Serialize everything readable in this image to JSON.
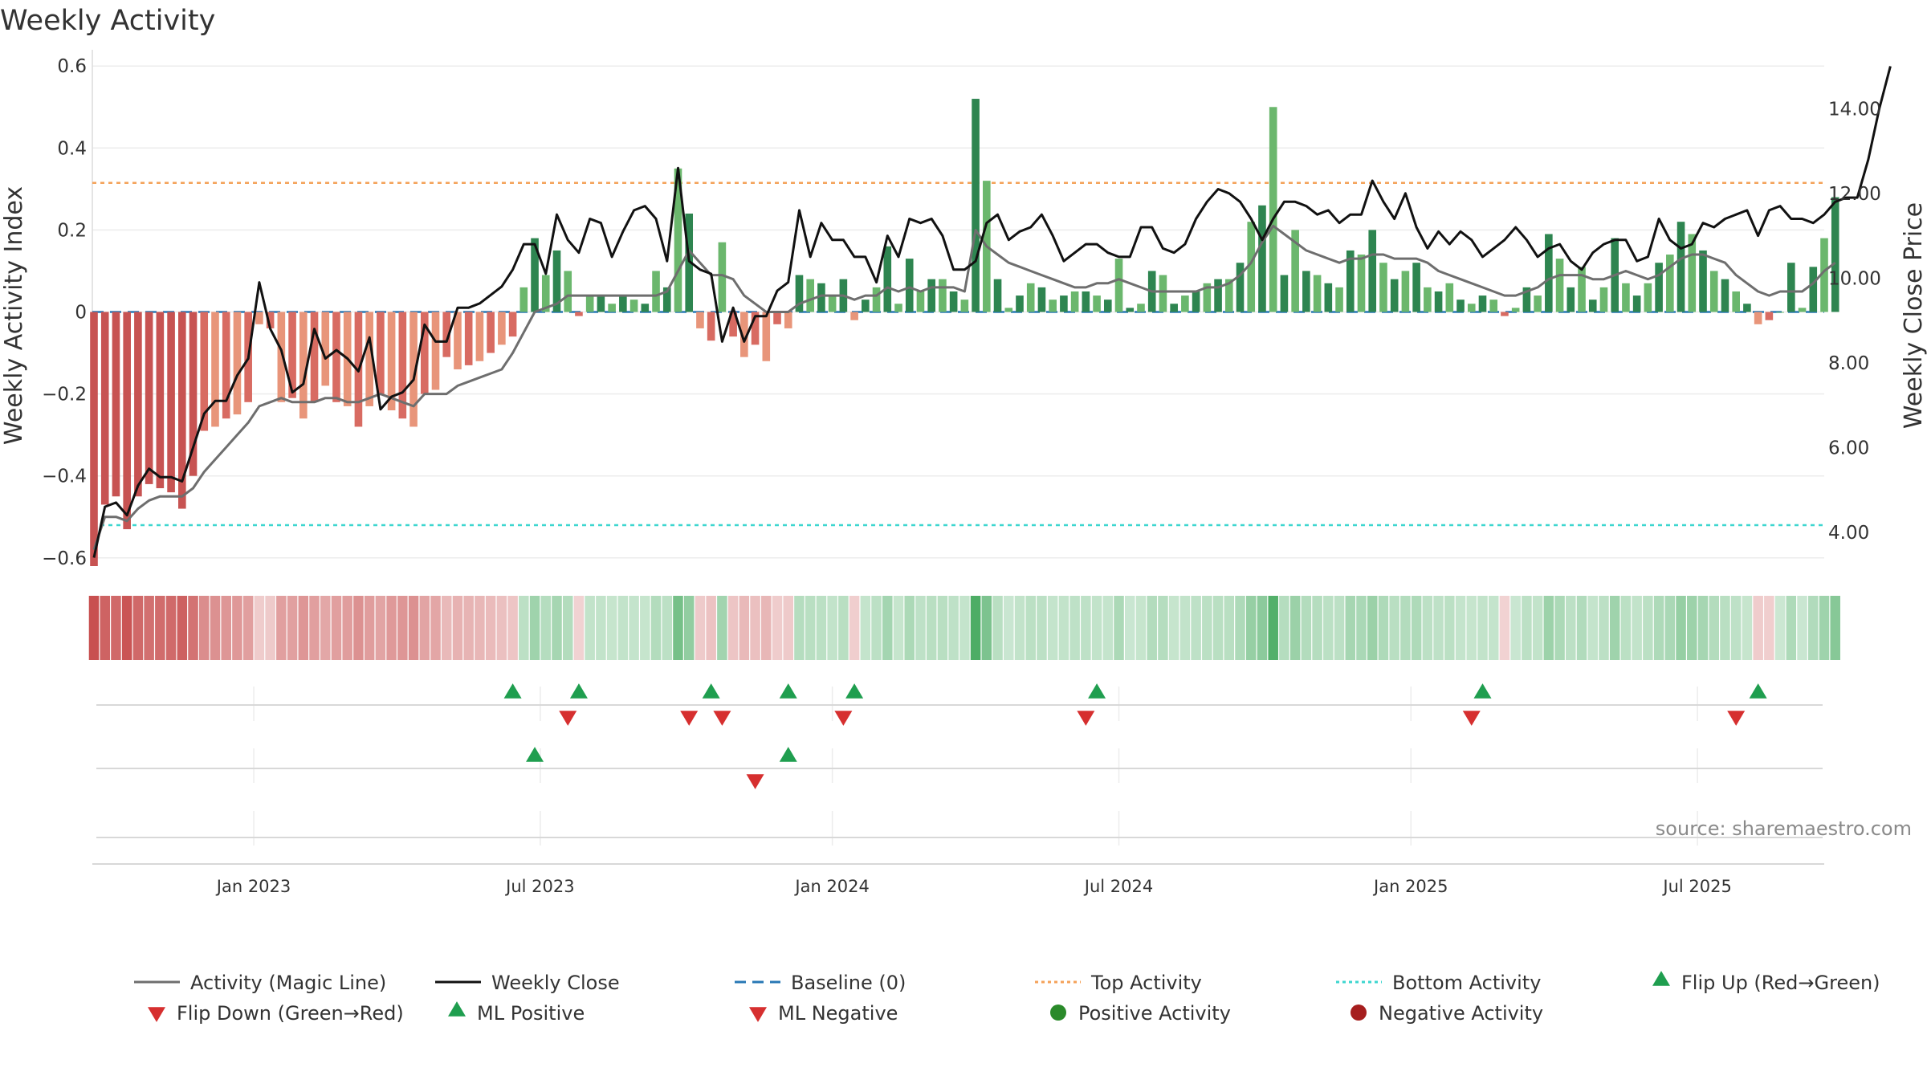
{
  "chart_data": {
    "type": "bar",
    "title": "Weekly Activity",
    "ylabel": "Weekly Activity Index",
    "y2label": "Weekly Close Price",
    "ylim": [
      -0.62,
      0.62
    ],
    "y2lim": [
      3.2,
      15.2
    ],
    "y_ticks": [
      -0.6,
      -0.4,
      -0.2,
      0,
      0.2,
      0.4,
      0.6
    ],
    "y_tick_labels": [
      "−0.6",
      "−0.4",
      "−0.2",
      "0",
      "0.2",
      "0.4",
      "0.6"
    ],
    "y2_ticks": [
      4,
      6,
      8,
      10,
      12,
      14
    ],
    "y2_tick_labels": [
      "4.00",
      "6.00",
      "8.00",
      "10.00",
      "12.00",
      "14.00"
    ],
    "x_range_weeks": [
      0,
      157
    ],
    "x_ticks_week": [
      14.5,
      40.5,
      67,
      93,
      119.5,
      145.5
    ],
    "x_tick_labels": [
      "Jan 2023",
      "Jul 2023",
      "Jan 2024",
      "Jul 2024",
      "Jan 2025",
      "Jul 2025"
    ],
    "baseline": 0,
    "top_activity": 0.315,
    "bottom_activity": -0.52,
    "source": "source: sharemaestro.com",
    "activity_index": [
      -0.62,
      -0.47,
      -0.45,
      -0.53,
      -0.45,
      -0.42,
      -0.43,
      -0.44,
      -0.48,
      -0.4,
      -0.29,
      -0.28,
      -0.26,
      -0.25,
      -0.22,
      -0.03,
      -0.04,
      -0.22,
      -0.21,
      -0.26,
      -0.22,
      -0.18,
      -0.22,
      -0.23,
      -0.28,
      -0.23,
      -0.2,
      -0.24,
      -0.26,
      -0.28,
      -0.2,
      -0.19,
      -0.11,
      -0.14,
      -0.13,
      -0.12,
      -0.1,
      -0.08,
      -0.06,
      0.06,
      0.18,
      0.09,
      0.15,
      0.1,
      -0.01,
      0.04,
      0.04,
      0.02,
      0.04,
      0.03,
      0.02,
      0.1,
      0.06,
      0.35,
      0.24,
      -0.04,
      -0.07,
      0.17,
      -0.06,
      -0.11,
      -0.08,
      -0.12,
      -0.03,
      -0.04,
      0.09,
      0.08,
      0.07,
      0.04,
      0.08,
      -0.02,
      0.03,
      0.06,
      0.16,
      0.02,
      0.13,
      0.05,
      0.08,
      0.08,
      0.05,
      0.03,
      0.52,
      0.32,
      0.08,
      0.01,
      0.04,
      0.07,
      0.06,
      0.03,
      0.04,
      0.05,
      0.05,
      0.04,
      0.03,
      0.13,
      0.01,
      0.02,
      0.1,
      0.09,
      0.02,
      0.04,
      0.05,
      0.07,
      0.08,
      0.08,
      0.12,
      0.22,
      0.26,
      0.5,
      0.09,
      0.2,
      0.1,
      0.09,
      0.07,
      0.06,
      0.15,
      0.14,
      0.2,
      0.12,
      0.08,
      0.1,
      0.12,
      0.06,
      0.05,
      0.07,
      0.03,
      0.02,
      0.04,
      0.03,
      -0.01,
      0.01,
      0.06,
      0.04,
      0.19,
      0.13,
      0.06,
      0.11,
      0.03,
      0.06,
      0.18,
      0.07,
      0.04,
      0.07,
      0.12,
      0.14,
      0.22,
      0.19,
      0.15,
      0.1,
      0.08,
      0.05,
      0.02,
      -0.03,
      -0.02,
      0,
      0.12,
      0.01,
      0.11,
      0.18,
      0.28
    ],
    "magic_line": [
      -0.58,
      -0.5,
      -0.5,
      -0.51,
      -0.48,
      -0.46,
      -0.45,
      -0.45,
      -0.45,
      -0.43,
      -0.39,
      -0.36,
      -0.33,
      -0.3,
      -0.27,
      -0.23,
      -0.22,
      -0.21,
      -0.22,
      -0.22,
      -0.22,
      -0.21,
      -0.21,
      -0.22,
      -0.22,
      -0.21,
      -0.2,
      -0.21,
      -0.22,
      -0.23,
      -0.2,
      -0.2,
      -0.2,
      -0.18,
      -0.17,
      -0.16,
      -0.15,
      -0.14,
      -0.1,
      -0.05,
      0.0,
      0.01,
      0.02,
      0.04,
      0.04,
      0.04,
      0.04,
      0.04,
      0.04,
      0.04,
      0.04,
      0.04,
      0.05,
      0.1,
      0.15,
      0.12,
      0.09,
      0.09,
      0.08,
      0.04,
      0.02,
      0.0,
      0.0,
      0.0,
      0.02,
      0.03,
      0.04,
      0.04,
      0.04,
      0.03,
      0.04,
      0.04,
      0.06,
      0.05,
      0.06,
      0.05,
      0.06,
      0.06,
      0.06,
      0.05,
      0.2,
      0.16,
      0.14,
      0.12,
      0.11,
      0.1,
      0.09,
      0.08,
      0.07,
      0.06,
      0.06,
      0.07,
      0.07,
      0.08,
      0.07,
      0.06,
      0.05,
      0.05,
      0.05,
      0.05,
      0.05,
      0.06,
      0.06,
      0.07,
      0.09,
      0.12,
      0.17,
      0.21,
      0.19,
      0.17,
      0.15,
      0.14,
      0.13,
      0.12,
      0.13,
      0.13,
      0.14,
      0.14,
      0.13,
      0.13,
      0.13,
      0.12,
      0.1,
      0.09,
      0.08,
      0.07,
      0.06,
      0.05,
      0.04,
      0.04,
      0.05,
      0.06,
      0.08,
      0.09,
      0.09,
      0.09,
      0.08,
      0.08,
      0.09,
      0.1,
      0.09,
      0.08,
      0.09,
      0.11,
      0.13,
      0.14,
      0.14,
      0.13,
      0.12,
      0.09,
      0.07,
      0.05,
      0.04,
      0.05,
      0.05,
      0.05,
      0.07,
      0.1,
      0.12
    ],
    "weekly_close": [
      3.4,
      4.6,
      4.7,
      4.4,
      5.1,
      5.5,
      5.3,
      5.3,
      5.2,
      6.0,
      6.8,
      7.1,
      7.1,
      7.7,
      8.1,
      9.9,
      8.8,
      8.3,
      7.3,
      7.5,
      8.8,
      8.1,
      8.3,
      8.1,
      7.8,
      8.6,
      6.9,
      7.2,
      7.3,
      7.6,
      8.9,
      8.5,
      8.5,
      9.3,
      9.3,
      9.4,
      9.6,
      9.8,
      10.2,
      10.8,
      10.8,
      10.1,
      11.5,
      10.9,
      10.6,
      11.4,
      11.3,
      10.5,
      11.1,
      11.6,
      11.7,
      11.4,
      10.4,
      12.6,
      10.4,
      10.2,
      10.1,
      8.5,
      9.3,
      8.5,
      9.1,
      9.1,
      9.7,
      9.9,
      11.6,
      10.5,
      11.3,
      10.9,
      10.9,
      10.5,
      10.5,
      9.9,
      11.0,
      10.5,
      11.4,
      11.3,
      11.4,
      11.0,
      10.2,
      10.2,
      10.4,
      11.3,
      11.5,
      10.9,
      11.1,
      11.2,
      11.5,
      11.0,
      10.4,
      10.6,
      10.8,
      10.8,
      10.6,
      10.5,
      10.5,
      11.2,
      11.2,
      10.7,
      10.6,
      10.8,
      11.4,
      11.8,
      12.1,
      12.0,
      11.8,
      11.4,
      10.9,
      11.4,
      11.8,
      11.8,
      11.7,
      11.5,
      11.6,
      11.3,
      11.5,
      11.5,
      12.3,
      11.8,
      11.4,
      12.0,
      11.2,
      10.7,
      11.1,
      10.8,
      11.1,
      10.9,
      10.5,
      10.7,
      10.9,
      11.2,
      10.9,
      10.5,
      10.7,
      10.8,
      10.4,
      10.2,
      10.6,
      10.8,
      10.9,
      10.9,
      10.4,
      10.5,
      11.4,
      10.9,
      10.7,
      10.8,
      11.3,
      11.2,
      11.4,
      11.5,
      11.6,
      11.0,
      11.6,
      11.7,
      11.4,
      11.4,
      11.3,
      11.5,
      11.8,
      11.9,
      11.9,
      12.8,
      14.0,
      15.0
    ],
    "flip_up_weeks": [
      38,
      44,
      56,
      63,
      69,
      91,
      126,
      151
    ],
    "flip_down_weeks": [
      43,
      54,
      57,
      68,
      90,
      125,
      149
    ],
    "ml_positive_weeks": [
      40,
      63
    ],
    "ml_negative_weeks": [
      60
    ],
    "legend": [
      {
        "label": "Activity (Magic Line)",
        "kind": "line",
        "color": "#6e6e6e"
      },
      {
        "label": "Weekly Close",
        "kind": "line",
        "color": "#111111"
      },
      {
        "label": "Baseline (0)",
        "kind": "dashed",
        "color": "#2878b5"
      },
      {
        "label": "Top Activity",
        "kind": "dotted",
        "color": "#f4a259"
      },
      {
        "label": "Bottom Activity",
        "kind": "dotted",
        "color": "#3dd6cf"
      },
      {
        "label": "Flip Up (Red→Green)",
        "kind": "tri-up",
        "color": "#1f9e4f"
      },
      {
        "label": "Flip Down (Green→Red)",
        "kind": "tri-down",
        "color": "#d62f2f"
      },
      {
        "label": "ML Positive",
        "kind": "tri-up",
        "color": "#1f9e4f"
      },
      {
        "label": "ML Negative",
        "kind": "tri-down",
        "color": "#d62f2f"
      },
      {
        "label": "Positive Activity",
        "kind": "dot",
        "color": "#2a8a2a"
      },
      {
        "label": "Negative Activity",
        "kind": "dot",
        "color": "#a61e1e"
      }
    ]
  }
}
